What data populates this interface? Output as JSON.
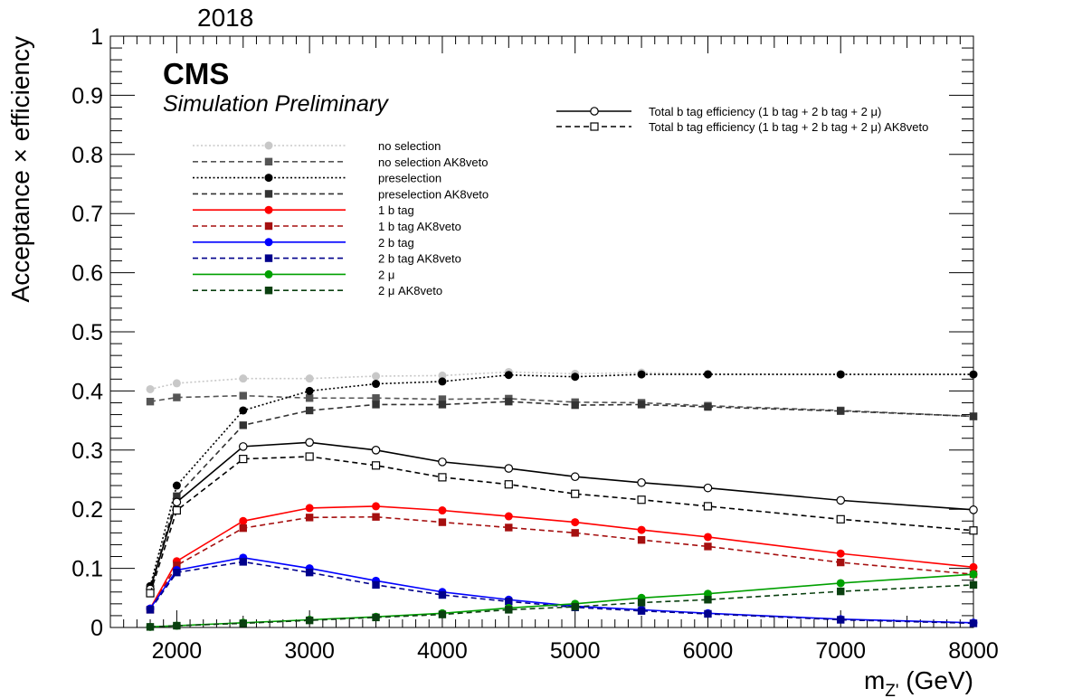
{
  "header": {
    "year": "2018",
    "cms": "CMS",
    "cms_sub": "Simulation Preliminary"
  },
  "chart_data": {
    "type": "line",
    "xlabel": "m_{Z'} (GeV)",
    "xlabel_main": "m",
    "xlabel_sub": "Z'",
    "xlabel_unit": " (GeV)",
    "ylabel": "Acceptance × efficiency",
    "xlim": [
      1500,
      8000
    ],
    "ylim": [
      0,
      1
    ],
    "x_ticks": [
      2000,
      3000,
      4000,
      5000,
      6000,
      7000,
      8000
    ],
    "y_ticks": [
      0,
      0.1,
      0.2,
      0.3,
      0.4,
      0.5,
      0.6,
      0.7,
      0.8,
      0.9,
      1
    ],
    "y_tick_labels": [
      "0",
      "0.1",
      "0.2",
      "0.3",
      "0.4",
      "0.5",
      "0.6",
      "0.7",
      "0.8",
      "0.9",
      "1"
    ],
    "grid": false,
    "x": [
      1800,
      2000,
      2500,
      3000,
      3500,
      4000,
      4500,
      5000,
      5500,
      6000,
      7000,
      8000
    ],
    "series": [
      {
        "name": "no selection",
        "color": "#c8c8c8",
        "dash": "dot",
        "marker": "circle",
        "values": [
          0.403,
          0.413,
          0.421,
          0.421,
          0.425,
          0.426,
          0.432,
          0.429,
          0.431,
          0.429,
          0.428,
          0.428
        ]
      },
      {
        "name": "no selection AK8veto",
        "color": "#555555",
        "dash": "dash",
        "marker": "square",
        "values": [
          0.382,
          0.389,
          0.392,
          0.388,
          0.388,
          0.386,
          0.387,
          0.381,
          0.38,
          0.375,
          0.367,
          0.357
        ]
      },
      {
        "name": "preselection",
        "color": "#000000",
        "dash": "dot",
        "marker": "circle",
        "values": [
          0.07,
          0.24,
          0.367,
          0.4,
          0.412,
          0.416,
          0.427,
          0.424,
          0.428,
          0.428,
          0.428,
          0.428
        ]
      },
      {
        "name": "preselection AK8veto",
        "color": "#333333",
        "dash": "dash",
        "marker": "square",
        "values": [
          0.065,
          0.222,
          0.342,
          0.367,
          0.377,
          0.377,
          0.382,
          0.376,
          0.377,
          0.373,
          0.366,
          0.357
        ]
      },
      {
        "name": "1 b tag",
        "color": "#ff0000",
        "dash": "solid",
        "marker": "circle",
        "values": [
          0.032,
          0.112,
          0.18,
          0.202,
          0.205,
          0.198,
          0.188,
          0.178,
          0.165,
          0.153,
          0.125,
          0.102
        ]
      },
      {
        "name": "1 b tag AK8veto",
        "color": "#a50f0f",
        "dash": "dash",
        "marker": "square",
        "values": [
          0.03,
          0.105,
          0.168,
          0.186,
          0.187,
          0.178,
          0.169,
          0.16,
          0.148,
          0.137,
          0.11,
          0.09
        ]
      },
      {
        "name": "2 b tag",
        "color": "#0000ff",
        "dash": "solid",
        "marker": "circle",
        "values": [
          0.032,
          0.097,
          0.118,
          0.1,
          0.079,
          0.06,
          0.047,
          0.036,
          0.03,
          0.024,
          0.014,
          0.008
        ]
      },
      {
        "name": "2 b tag AK8veto",
        "color": "#00008b",
        "dash": "dash",
        "marker": "square",
        "values": [
          0.03,
          0.093,
          0.111,
          0.093,
          0.072,
          0.055,
          0.044,
          0.034,
          0.028,
          0.023,
          0.013,
          0.007
        ]
      },
      {
        "name": "2 μ",
        "color": "#00a000",
        "dash": "solid",
        "marker": "circle",
        "values": [
          0.001,
          0.003,
          0.008,
          0.013,
          0.018,
          0.024,
          0.033,
          0.04,
          0.05,
          0.057,
          0.075,
          0.09
        ]
      },
      {
        "name": "2 μ AK8veto",
        "color": "#0a4010",
        "dash": "dash",
        "marker": "square",
        "values": [
          0.001,
          0.003,
          0.007,
          0.012,
          0.017,
          0.022,
          0.03,
          0.035,
          0.042,
          0.047,
          0.061,
          0.072
        ]
      },
      {
        "name": "Total b tag efficiency (1 b tag + 2 b tag + 2 μ)",
        "color": "#000000",
        "dash": "solid",
        "marker": "open-circle",
        "values": [
          0.065,
          0.212,
          0.306,
          0.313,
          0.3,
          0.28,
          0.269,
          0.255,
          0.245,
          0.236,
          0.215,
          0.199
        ]
      },
      {
        "name": "Total b tag efficiency (1 b tag + 2 b tag + 2 μ) AK8veto",
        "color": "#000000",
        "dash": "dash",
        "marker": "open-square",
        "values": [
          0.058,
          0.198,
          0.285,
          0.289,
          0.274,
          0.254,
          0.242,
          0.226,
          0.216,
          0.205,
          0.183,
          0.164
        ]
      }
    ]
  }
}
